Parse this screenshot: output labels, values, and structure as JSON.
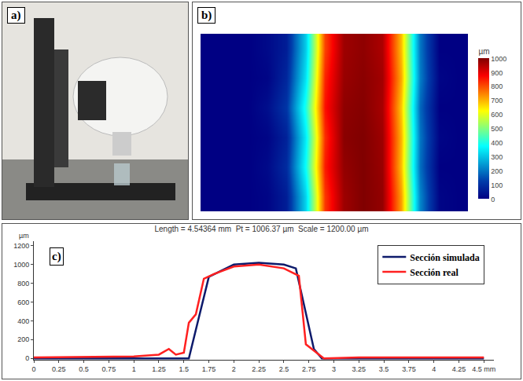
{
  "chart_data": [
    {
      "type": "image",
      "annotations": [
        "a)"
      ]
    },
    {
      "type": "heatmap",
      "annotations": [
        "b)"
      ],
      "tick_labels": false,
      "z": [
        [
          0,
          0,
          0,
          10,
          60,
          320,
          820,
          970,
          1000,
          980,
          720,
          220,
          10,
          0
        ],
        [
          0,
          0,
          0,
          20,
          90,
          380,
          850,
          980,
          1000,
          975,
          690,
          190,
          0,
          0
        ],
        [
          0,
          0,
          0,
          10,
          70,
          350,
          830,
          990,
          1000,
          970,
          700,
          200,
          10,
          0
        ],
        [
          0,
          0,
          0,
          30,
          110,
          400,
          860,
          985,
          995,
          960,
          680,
          180,
          0,
          0
        ],
        [
          0,
          0,
          0,
          10,
          80,
          340,
          840,
          975,
          990,
          965,
          710,
          210,
          10,
          0
        ],
        [
          0,
          0,
          0,
          20,
          60,
          310,
          810,
          970,
          985,
          955,
          690,
          200,
          0,
          0
        ]
      ],
      "colorbar": {
        "title": "µm",
        "range": [
          0,
          1000
        ],
        "ticks": [
          0,
          100,
          200,
          300,
          400,
          500,
          600,
          700,
          800,
          900,
          1000
        ]
      }
    },
    {
      "type": "line",
      "annotations": [
        "c)"
      ],
      "title": "Length = 4.54364 mm  Pt = 1006.37 µm  Scale = 1200.00 µm",
      "ylabel": "µm",
      "xlim": [
        0,
        4.6
      ],
      "xticks": [
        0,
        0.25,
        0.5,
        0.75,
        1,
        1.25,
        1.5,
        1.75,
        2,
        2.25,
        2.5,
        2.75,
        3,
        3.25,
        3.5,
        3.75,
        4,
        4.25,
        {
          "value": 4.5,
          "label": "4.5 mm"
        }
      ],
      "ylim": [
        -15,
        1250
      ],
      "yticks": [
        0,
        200,
        400,
        600,
        800,
        1000,
        1200
      ],
      "grid": false,
      "legend": "top-right",
      "series": [
        {
          "name": "Sección simulada",
          "color": "#0d1a6b",
          "x": [
            0,
            1.55,
            1.75,
            2.0,
            2.25,
            2.5,
            2.62,
            2.8,
            2.88,
            4.5
          ],
          "values": [
            0,
            0,
            870,
            1000,
            1020,
            1000,
            960,
            100,
            0,
            0
          ]
        },
        {
          "name": "Sección real",
          "color": "#ff2020",
          "x": [
            0,
            1.0,
            1.25,
            1.35,
            1.42,
            1.5,
            1.55,
            1.62,
            1.7,
            1.8,
            2.0,
            2.25,
            2.5,
            2.65,
            2.72,
            2.8,
            2.9,
            3.25,
            4.5
          ],
          "values": [
            10,
            20,
            40,
            100,
            40,
            60,
            380,
            470,
            850,
            900,
            980,
            1000,
            960,
            880,
            150,
            80,
            0,
            10,
            10
          ]
        }
      ]
    }
  ]
}
